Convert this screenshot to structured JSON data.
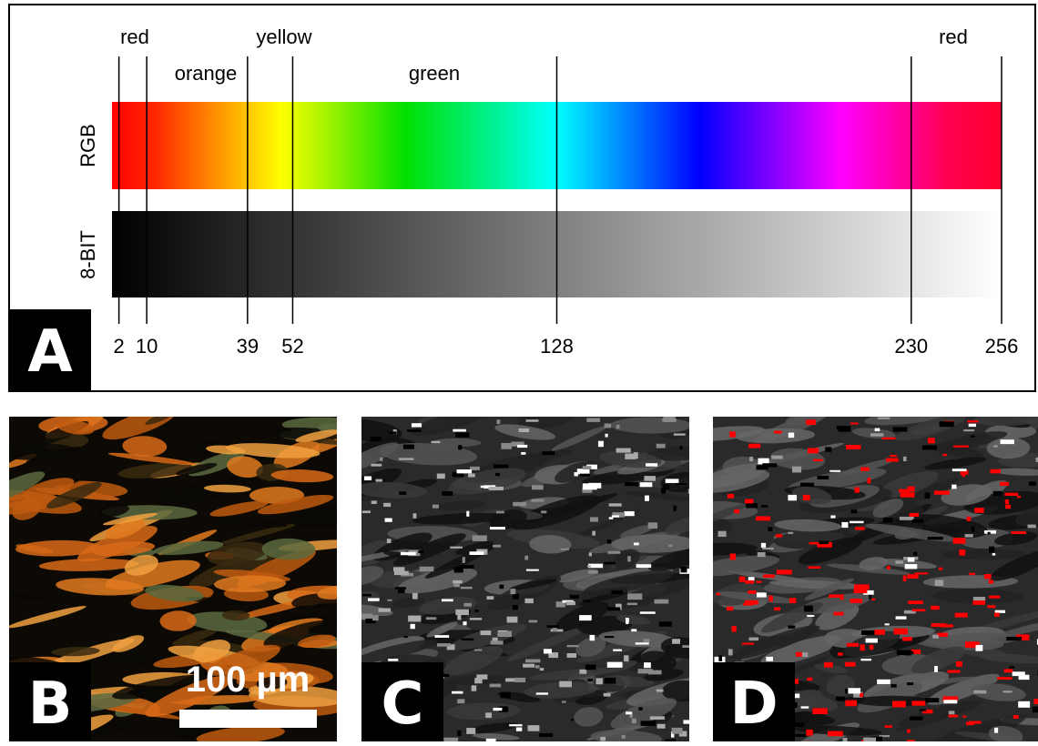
{
  "panel_a": {
    "letter": "A",
    "row_labels": [
      "RGB",
      "8-BIT"
    ],
    "color_names": [
      "red",
      "orange",
      "yellow",
      "green",
      "red"
    ],
    "xlim": [
      0,
      256
    ],
    "ticks": [
      2,
      10,
      39,
      52,
      128,
      230,
      256
    ]
  },
  "panel_b": {
    "letter": "B",
    "scale_bar": "100 µm"
  },
  "panel_c": {
    "letter": "C"
  },
  "panel_d": {
    "letter": "D"
  }
}
